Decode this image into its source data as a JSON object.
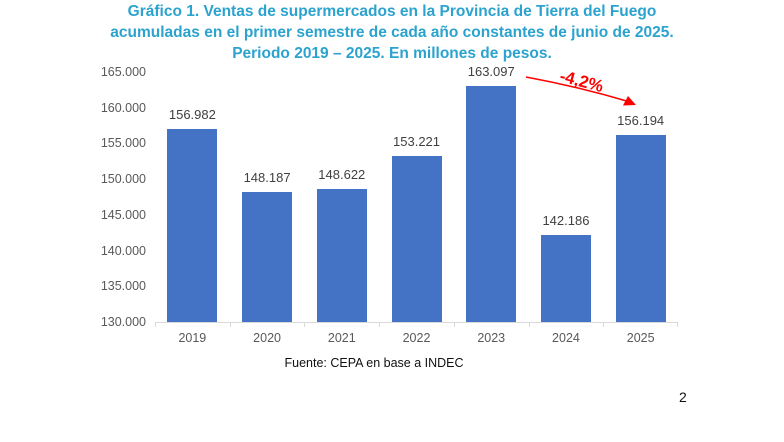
{
  "page": {
    "number": "2"
  },
  "chart_data": {
    "type": "bar",
    "title_lines": [
      "Gráfico 1. Ventas de supermercados en la Provincia de Tierra del Fuego",
      "acumuladas en el primer semestre de cada año constantes de junio de 2025.",
      "Periodo 2019 – 2025. En millones de pesos."
    ],
    "title": "Gráfico 1. Ventas de supermercados en la Provincia de Tierra del Fuego acumuladas en el primer semestre de cada año constantes de junio de 2025. Periodo 2019 – 2025. En millones de pesos.",
    "categories": [
      "2019",
      "2020",
      "2021",
      "2022",
      "2023",
      "2024",
      "2025"
    ],
    "values": [
      156982,
      148187,
      148622,
      153221,
      163097,
      142186,
      156194
    ],
    "labels": [
      "156.982",
      "148.187",
      "148.622",
      "153.221",
      "163.097",
      "142.186",
      "156.194"
    ],
    "ylim": [
      130000,
      165000
    ],
    "yticks": [
      {
        "value": 165000,
        "label": "165.000"
      },
      {
        "value": 160000,
        "label": "160.000"
      },
      {
        "value": 155000,
        "label": "155.000"
      },
      {
        "value": 150000,
        "label": "150.000"
      },
      {
        "value": 145000,
        "label": "145.000"
      },
      {
        "value": 140000,
        "label": "140.000"
      },
      {
        "value": 135000,
        "label": "135.000"
      },
      {
        "value": 130000,
        "label": "130.000"
      }
    ],
    "grid": false,
    "legend": "none",
    "xlabel": "",
    "ylabel": "",
    "annotation": {
      "text": "-4,2%"
    },
    "source": "Fuente: CEPA en base a INDEC",
    "bar_color": "#4472C4",
    "title_color": "#2BA3CE",
    "annotation_color": "#FF0000",
    "axis_line_color": "#D9D9D9"
  }
}
